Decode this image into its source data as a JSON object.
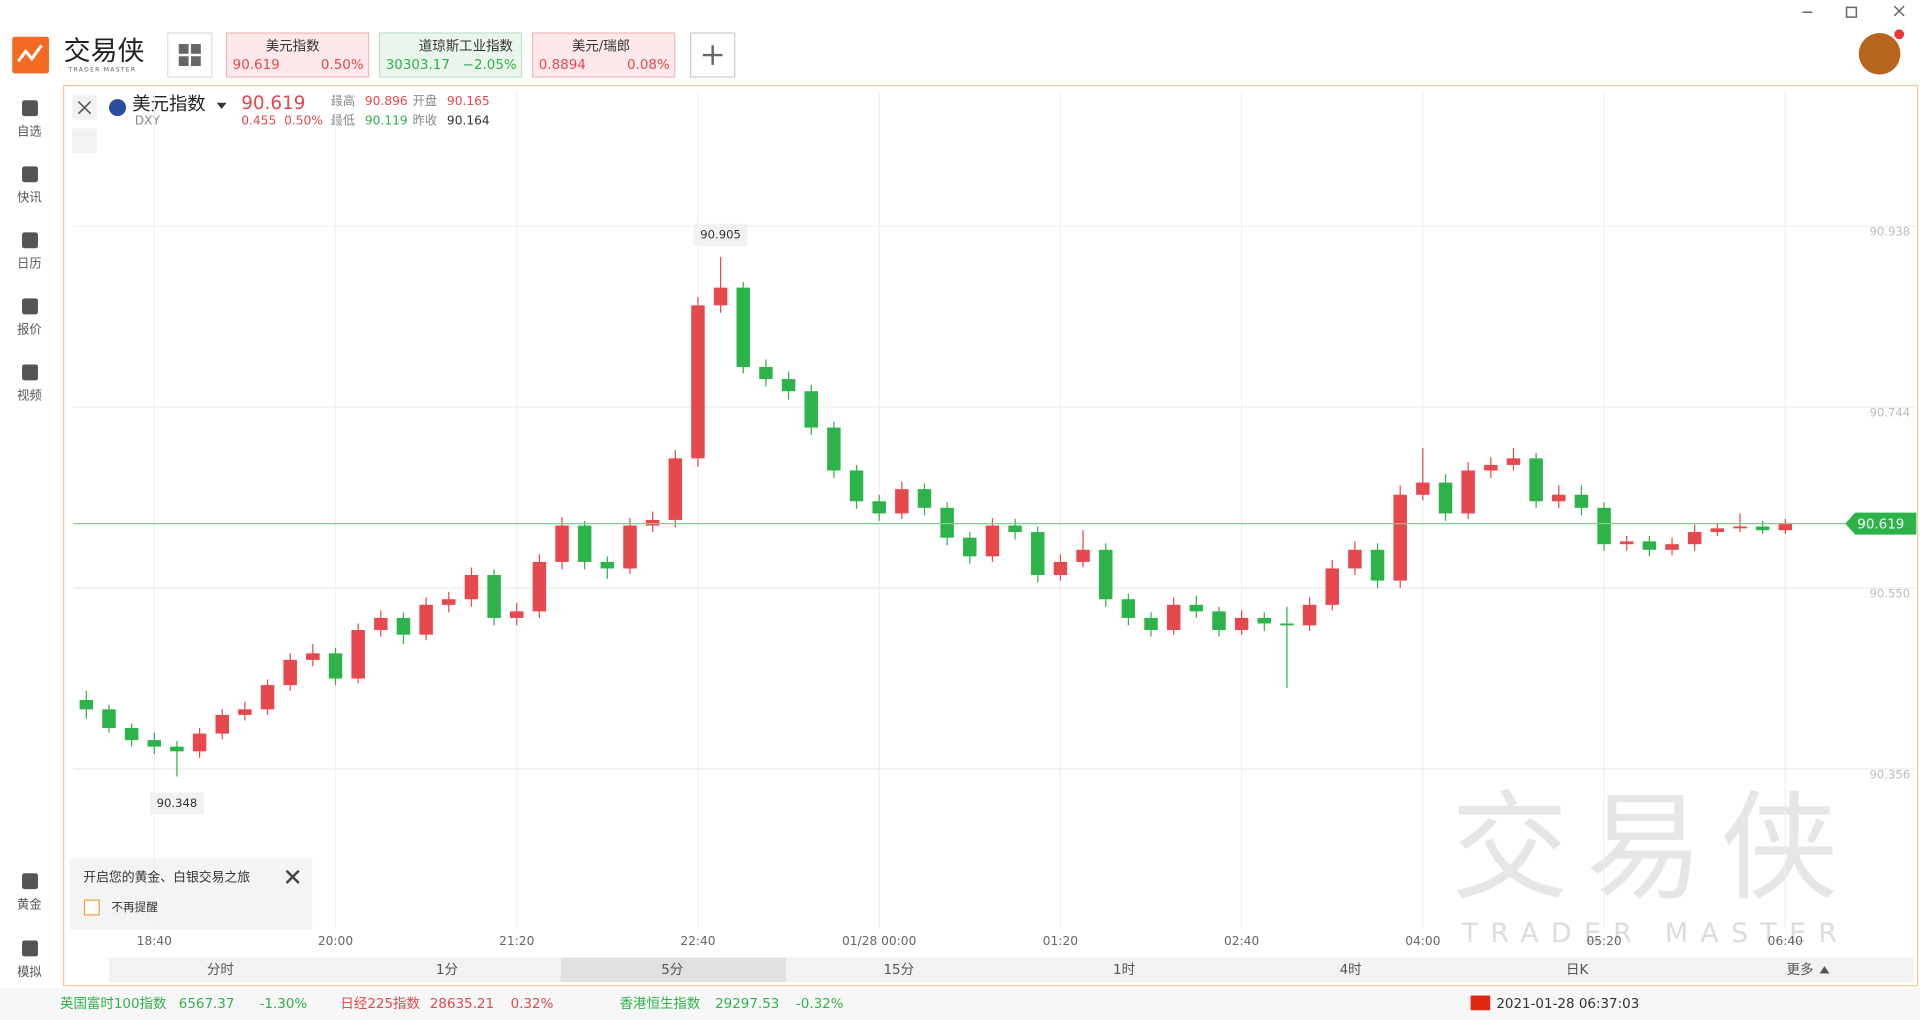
{
  "app": {
    "logo": "交易侠",
    "logo_sub": "TRADER MASTER"
  },
  "tabs": [
    {
      "name": "美元指数",
      "price": "90.619",
      "change": "0.50%"
    },
    {
      "name": "道琼斯工业指数",
      "price": "30303.17",
      "change": "−2.05%"
    },
    {
      "name": "美元/瑞郎",
      "price": "0.8894",
      "change": "0.08%"
    }
  ],
  "sidebar": [
    "自选",
    "快讯",
    "日历",
    "报价",
    "视频",
    "黄金",
    "模拟"
  ],
  "quote": {
    "name": "美元指数",
    "code": "DXY",
    "price": "90.619",
    "change": "0.455",
    "change_pct": "0.50%",
    "high_label": "最高",
    "high": "90.896",
    "open_label": "开盘",
    "open": "90.165",
    "low_label": "最低",
    "low": "90.119",
    "prev_label": "昨收",
    "prev": "90.164"
  },
  "timeframes": [
    "分时",
    "1分",
    "5分",
    "15分",
    "1时",
    "4时",
    "日K",
    "更多"
  ],
  "popup": {
    "text": "开启您的黄金、白银交易之旅",
    "checkbox": "不再提醒"
  },
  "ticker": [
    {
      "name": "英国富时100指数",
      "price": "6567.37",
      "change": "-1.30%"
    },
    {
      "name": "日经225指数",
      "price": "28635.21",
      "change": "0.32%"
    },
    {
      "name": "香港恒生指数",
      "price": "29297.53",
      "change": "-0.32%"
    }
  ],
  "datetime": "2021-01-28 06:37:03",
  "watermark": {
    "title": "交易侠",
    "sub": "TRADER MASTER"
  },
  "chart_data": {
    "type": "candlestick",
    "up_color": "#e5484d",
    "down_color": "#2eb24a",
    "grid": true,
    "ylim": [
      90.184,
      91.082
    ],
    "yticks": [
      90.356,
      {
        "value": 90.55,
        "label": "90.550"
      },
      90.744,
      90.938
    ],
    "high_label": 90.905,
    "low_label": 90.348,
    "last_price": 90.619,
    "categories": [
      null,
      null,
      null,
      "18:40",
      null,
      null,
      null,
      null,
      null,
      null,
      null,
      "20:00",
      null,
      null,
      null,
      null,
      null,
      null,
      null,
      "21:20",
      null,
      null,
      null,
      null,
      null,
      null,
      null,
      "22:40",
      null,
      null,
      null,
      null,
      null,
      null,
      null,
      "01/28 00:00",
      null,
      null,
      null,
      null,
      null,
      null,
      null,
      "01:20",
      null,
      null,
      null,
      null,
      null,
      null,
      null,
      "02:40",
      null,
      null,
      null,
      null,
      null,
      null,
      null,
      "04:00",
      null,
      null,
      null,
      null,
      null,
      null,
      null,
      "05:20",
      null,
      null,
      null,
      null,
      null,
      null,
      null,
      "06:40"
    ],
    "values": [
      [
        90.43,
        90.44,
        90.41,
        90.42
      ],
      [
        90.42,
        90.425,
        90.395,
        90.4
      ],
      [
        90.4,
        90.405,
        90.38,
        90.387
      ],
      [
        90.387,
        90.395,
        90.372,
        90.38
      ],
      [
        90.38,
        90.386,
        90.348,
        90.375
      ],
      [
        90.375,
        90.4,
        90.368,
        90.394
      ],
      [
        90.394,
        90.42,
        90.388,
        90.414
      ],
      [
        90.414,
        90.428,
        90.408,
        90.42
      ],
      [
        90.42,
        90.452,
        90.414,
        90.446
      ],
      [
        90.446,
        90.48,
        90.44,
        90.473
      ],
      [
        90.473,
        90.49,
        90.466,
        90.48
      ],
      [
        90.48,
        90.486,
        90.446,
        90.453
      ],
      [
        90.453,
        90.512,
        90.448,
        90.505
      ],
      [
        90.505,
        90.526,
        90.498,
        90.518
      ],
      [
        90.518,
        90.524,
        90.49,
        90.5
      ],
      [
        90.5,
        90.54,
        90.494,
        90.532
      ],
      [
        90.532,
        90.546,
        90.524,
        90.538
      ],
      [
        90.538,
        90.572,
        90.53,
        90.564
      ],
      [
        90.564,
        90.57,
        90.51,
        90.518
      ],
      [
        90.518,
        90.534,
        90.51,
        90.525
      ],
      [
        90.525,
        90.586,
        90.518,
        90.578
      ],
      [
        90.578,
        90.626,
        90.57,
        90.617
      ],
      [
        90.617,
        90.622,
        90.57,
        90.578
      ],
      [
        90.578,
        90.584,
        90.56,
        90.571
      ],
      [
        90.571,
        90.625,
        90.565,
        90.617
      ],
      [
        90.617,
        90.632,
        90.61,
        90.623
      ],
      [
        90.623,
        90.698,
        90.615,
        90.689
      ],
      [
        90.689,
        90.862,
        90.68,
        90.853
      ],
      [
        90.853,
        90.905,
        90.845,
        90.872
      ],
      [
        90.872,
        90.878,
        90.78,
        90.787
      ],
      [
        90.787,
        90.795,
        90.766,
        90.774
      ],
      [
        90.774,
        90.782,
        90.752,
        90.761
      ],
      [
        90.761,
        90.768,
        90.714,
        90.722
      ],
      [
        90.722,
        90.728,
        90.668,
        90.676
      ],
      [
        90.676,
        90.682,
        90.635,
        90.643
      ],
      [
        90.643,
        90.65,
        90.622,
        90.63
      ],
      [
        90.63,
        90.664,
        90.624,
        90.656
      ],
      [
        90.656,
        90.662,
        90.628,
        90.636
      ],
      [
        90.636,
        90.642,
        90.596,
        90.604
      ],
      [
        90.604,
        90.61,
        90.576,
        90.584
      ],
      [
        90.584,
        90.625,
        90.578,
        90.617
      ],
      [
        90.617,
        90.624,
        90.602,
        90.61
      ],
      [
        90.61,
        90.616,
        90.556,
        90.564
      ],
      [
        90.564,
        90.586,
        90.558,
        90.578
      ],
      [
        90.578,
        90.612,
        90.572,
        90.591
      ],
      [
        90.591,
        90.598,
        90.53,
        90.538
      ],
      [
        90.538,
        90.544,
        90.51,
        90.518
      ],
      [
        90.518,
        90.524,
        90.498,
        90.505
      ],
      [
        90.505,
        90.54,
        90.5,
        90.532
      ],
      [
        90.532,
        90.542,
        90.518,
        90.525
      ],
      [
        90.525,
        90.53,
        90.498,
        90.505
      ],
      [
        90.505,
        90.526,
        90.5,
        90.518
      ],
      [
        90.518,
        90.524,
        90.504,
        90.512
      ],
      [
        90.512,
        90.53,
        90.443,
        90.51
      ],
      [
        90.51,
        90.54,
        90.504,
        90.532
      ],
      [
        90.532,
        90.58,
        90.526,
        90.571
      ],
      [
        90.571,
        90.6,
        90.564,
        90.591
      ],
      [
        90.591,
        90.598,
        90.55,
        90.558
      ],
      [
        90.558,
        90.66,
        90.55,
        90.65
      ],
      [
        90.65,
        90.7,
        90.644,
        90.663
      ],
      [
        90.663,
        90.672,
        90.622,
        90.63
      ],
      [
        90.63,
        90.685,
        90.624,
        90.676
      ],
      [
        90.676,
        90.69,
        90.668,
        90.682
      ],
      [
        90.682,
        90.7,
        90.676,
        90.689
      ],
      [
        90.689,
        90.695,
        90.636,
        90.643
      ],
      [
        90.643,
        90.66,
        90.636,
        90.65
      ],
      [
        90.65,
        90.66,
        90.628,
        90.636
      ],
      [
        90.636,
        90.642,
        90.59,
        90.597
      ],
      [
        90.597,
        90.606,
        90.59,
        90.6
      ],
      [
        90.6,
        90.606,
        90.584,
        90.591
      ],
      [
        90.591,
        90.604,
        90.585,
        90.597
      ],
      [
        90.597,
        90.618,
        90.59,
        90.61
      ],
      [
        90.61,
        90.62,
        90.606,
        90.614
      ],
      [
        90.614,
        90.63,
        90.61,
        90.616
      ],
      [
        90.616,
        90.622,
        90.608,
        90.612
      ],
      [
        90.612,
        90.624,
        90.608,
        90.619
      ]
    ]
  }
}
